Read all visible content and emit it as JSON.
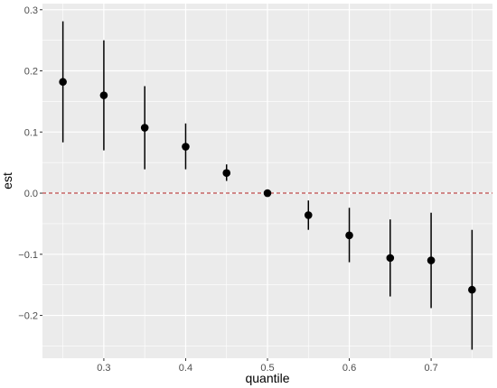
{
  "chart_data": {
    "type": "scatter",
    "subtype": "point-range",
    "title": "",
    "xlabel": "quantile",
    "ylabel": "est",
    "xlim": [
      0.225,
      0.775
    ],
    "ylim": [
      -0.27,
      0.31
    ],
    "x_ticks": [
      0.3,
      0.4,
      0.5,
      0.6,
      0.7
    ],
    "x_tick_labels": [
      "0.3",
      "0.4",
      "0.5",
      "0.6",
      "0.7"
    ],
    "y_ticks": [
      -0.2,
      -0.1,
      0.0,
      0.1,
      0.2,
      0.3
    ],
    "y_tick_labels": [
      "−0.2",
      "−0.1",
      "0.0",
      "0.1",
      "0.2",
      "0.3"
    ],
    "grid": true,
    "panel_background": "#ebebeb",
    "point_color": "#000000",
    "reference_line": {
      "y": 0.0,
      "style": "dashed",
      "color": "#b22222"
    },
    "points": [
      {
        "x": 0.25,
        "y": 0.182,
        "lower": 0.083,
        "upper": 0.281
      },
      {
        "x": 0.3,
        "y": 0.16,
        "lower": 0.07,
        "upper": 0.25
      },
      {
        "x": 0.35,
        "y": 0.107,
        "lower": 0.039,
        "upper": 0.175
      },
      {
        "x": 0.4,
        "y": 0.076,
        "lower": 0.039,
        "upper": 0.114
      },
      {
        "x": 0.45,
        "y": 0.033,
        "lower": 0.02,
        "upper": 0.047
      },
      {
        "x": 0.5,
        "y": 0.0,
        "lower": 0.0,
        "upper": 0.0
      },
      {
        "x": 0.55,
        "y": -0.036,
        "lower": -0.06,
        "upper": -0.012
      },
      {
        "x": 0.6,
        "y": -0.069,
        "lower": -0.113,
        "upper": -0.024
      },
      {
        "x": 0.65,
        "y": -0.106,
        "lower": -0.169,
        "upper": -0.043
      },
      {
        "x": 0.7,
        "y": -0.11,
        "lower": -0.188,
        "upper": -0.032
      },
      {
        "x": 0.75,
        "y": -0.158,
        "lower": -0.256,
        "upper": -0.06
      }
    ]
  }
}
